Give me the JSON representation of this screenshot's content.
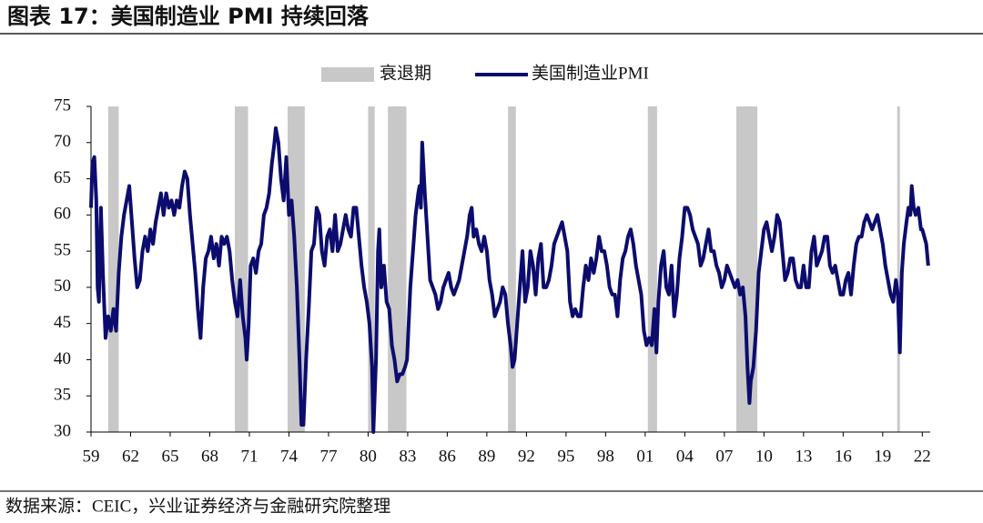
{
  "chart_data": {
    "type": "line",
    "title": "图表 17：美国制造业 PMI 持续回落",
    "source": "数据来源：CEIC，兴业证券经济与金融研究院整理",
    "recessions": {
      "name": "衰退期",
      "color": "#c8c8c8",
      "periods": [
        [
          1960.3,
          1961.1
        ],
        [
          1969.9,
          1970.9
        ],
        [
          1973.9,
          1975.2
        ],
        [
          1980.0,
          1980.5
        ],
        [
          1981.5,
          1982.9
        ],
        [
          1990.6,
          1991.2
        ],
        [
          2001.2,
          2001.9
        ],
        [
          2007.9,
          2009.5
        ],
        [
          2020.1,
          2020.3
        ]
      ]
    },
    "x": [
      1959.0,
      1959.1,
      1959.25,
      1959.4,
      1959.5,
      1959.6,
      1959.75,
      1959.9,
      1960.1,
      1960.3,
      1960.5,
      1960.7,
      1960.9,
      1961.1,
      1961.3,
      1961.5,
      1961.7,
      1961.9,
      1962.1,
      1962.3,
      1962.5,
      1962.7,
      1962.9,
      1963.1,
      1963.3,
      1963.5,
      1963.7,
      1963.9,
      1964.1,
      1964.3,
      1964.5,
      1964.7,
      1964.9,
      1965.1,
      1965.3,
      1965.5,
      1965.7,
      1965.9,
      1966.1,
      1966.3,
      1966.5,
      1966.7,
      1966.9,
      1967.1,
      1967.3,
      1967.5,
      1967.7,
      1967.9,
      1968.1,
      1968.3,
      1968.5,
      1968.7,
      1968.9,
      1969.1,
      1969.3,
      1969.5,
      1969.7,
      1969.9,
      1970.1,
      1970.3,
      1970.5,
      1970.7,
      1970.8,
      1970.95,
      1971.1,
      1971.3,
      1971.5,
      1971.7,
      1971.9,
      1972.1,
      1972.3,
      1972.5,
      1972.7,
      1972.9,
      1973.0,
      1973.2,
      1973.4,
      1973.6,
      1973.8,
      1974.0,
      1974.2,
      1974.4,
      1974.6,
      1974.8,
      1974.95,
      1975.1,
      1975.3,
      1975.5,
      1975.7,
      1975.9,
      1976.1,
      1976.3,
      1976.5,
      1976.7,
      1976.9,
      1977.1,
      1977.3,
      1977.5,
      1977.7,
      1977.9,
      1978.1,
      1978.3,
      1978.5,
      1978.7,
      1978.9,
      1979.1,
      1979.3,
      1979.5,
      1979.7,
      1979.9,
      1980.1,
      1980.3,
      1980.4,
      1980.6,
      1980.75,
      1980.85,
      1981.0,
      1981.2,
      1981.4,
      1981.6,
      1981.8,
      1982.0,
      1982.2,
      1982.4,
      1982.6,
      1982.8,
      1982.95,
      1983.2,
      1983.4,
      1983.6,
      1983.8,
      1983.9,
      1984.0,
      1984.1,
      1984.3,
      1984.5,
      1984.7,
      1984.9,
      1985.1,
      1985.3,
      1985.5,
      1985.7,
      1985.9,
      1986.1,
      1986.3,
      1986.5,
      1986.7,
      1986.9,
      1987.1,
      1987.3,
      1987.5,
      1987.7,
      1987.85,
      1988.0,
      1988.2,
      1988.4,
      1988.6,
      1988.8,
      1989.0,
      1989.2,
      1989.4,
      1989.6,
      1989.8,
      1990.0,
      1990.2,
      1990.4,
      1990.6,
      1990.8,
      1990.95,
      1991.1,
      1991.3,
      1991.5,
      1991.7,
      1991.9,
      1992.1,
      1992.3,
      1992.5,
      1992.7,
      1992.9,
      1993.1,
      1993.3,
      1993.5,
      1993.7,
      1993.9,
      1994.1,
      1994.3,
      1994.5,
      1994.7,
      1994.9,
      1995.1,
      1995.3,
      1995.5,
      1995.7,
      1995.9,
      1996.1,
      1996.3,
      1996.5,
      1996.7,
      1996.9,
      1997.1,
      1997.3,
      1997.5,
      1997.7,
      1997.9,
      1998.1,
      1998.3,
      1998.5,
      1998.7,
      1998.9,
      1999.1,
      1999.3,
      1999.5,
      1999.7,
      1999.9,
      2000.1,
      2000.3,
      2000.5,
      2000.7,
      2000.9,
      2001.1,
      2001.3,
      2001.5,
      2001.7,
      2001.85,
      2002.0,
      2002.2,
      2002.4,
      2002.6,
      2002.8,
      2003.0,
      2003.2,
      2003.4,
      2003.6,
      2003.8,
      2004.0,
      2004.2,
      2004.4,
      2004.6,
      2004.8,
      2005.0,
      2005.2,
      2005.4,
      2005.6,
      2005.8,
      2006.0,
      2006.2,
      2006.4,
      2006.6,
      2006.8,
      2007.0,
      2007.2,
      2007.4,
      2007.6,
      2007.8,
      2008.0,
      2008.2,
      2008.4,
      2008.6,
      2008.75,
      2008.9,
      2009.0,
      2009.2,
      2009.4,
      2009.6,
      2009.8,
      2010.0,
      2010.2,
      2010.4,
      2010.6,
      2010.8,
      2011.0,
      2011.2,
      2011.4,
      2011.6,
      2011.8,
      2012.0,
      2012.2,
      2012.4,
      2012.6,
      2012.8,
      2013.0,
      2013.2,
      2013.4,
      2013.6,
      2013.8,
      2014.0,
      2014.2,
      2014.4,
      2014.6,
      2014.8,
      2015.0,
      2015.2,
      2015.4,
      2015.6,
      2015.8,
      2016.0,
      2016.2,
      2016.4,
      2016.6,
      2016.8,
      2017.0,
      2017.2,
      2017.4,
      2017.6,
      2017.8,
      2018.0,
      2018.2,
      2018.4,
      2018.6,
      2018.8,
      2019.0,
      2019.2,
      2019.4,
      2019.6,
      2019.8,
      2020.0,
      2020.15,
      2020.3,
      2020.45,
      2020.6,
      2020.8,
      2020.95,
      2021.1,
      2021.2,
      2021.35,
      2021.5,
      2021.7,
      2021.9,
      2022.0,
      2022.15,
      2022.3,
      2022.45
    ],
    "series": [
      {
        "name": "美国制造业PMI",
        "color": "#0c0c6e",
        "values": [
          61,
          67,
          68,
          62,
          50,
          48,
          61,
          52,
          43,
          46,
          44,
          47,
          44,
          52,
          57,
          60,
          62,
          64,
          59,
          54,
          50,
          51,
          55,
          57,
          55,
          58,
          56,
          59,
          61,
          63,
          60,
          63,
          61,
          62,
          60,
          62,
          61,
          64,
          66,
          65,
          60,
          56,
          52,
          47,
          43,
          50,
          54,
          55,
          57,
          54,
          56,
          53,
          57,
          56,
          57,
          55,
          51,
          48,
          46,
          51,
          46,
          43,
          40,
          45,
          53,
          54,
          52,
          55,
          56,
          60,
          61,
          63,
          67,
          70,
          72,
          70,
          65,
          62,
          68,
          60,
          62,
          57,
          50,
          40,
          31,
          31,
          40,
          47,
          55,
          56,
          61,
          60,
          55,
          53,
          57,
          58,
          55,
          60,
          55,
          56,
          58,
          60,
          58,
          57,
          61,
          61,
          57,
          53,
          50,
          48,
          45,
          39,
          30,
          40,
          55,
          58,
          50,
          53,
          48,
          47,
          42,
          40,
          37,
          38,
          38,
          39,
          40,
          50,
          55,
          60,
          63,
          64,
          61,
          70,
          63,
          57,
          51,
          50,
          49,
          47,
          48,
          50,
          51,
          52,
          50,
          49,
          50,
          51,
          53,
          55,
          57,
          60,
          61,
          57,
          58,
          56,
          55,
          57,
          55,
          51,
          49,
          46,
          47,
          48,
          50,
          49,
          45,
          42,
          39,
          40,
          45,
          50,
          55,
          48,
          50,
          55,
          53,
          49,
          54,
          56,
          50,
          50,
          51,
          53,
          56,
          57,
          58,
          59,
          57,
          55,
          48,
          46,
          47,
          46,
          46,
          50,
          53,
          51,
          54,
          52,
          54,
          57,
          55,
          55,
          53,
          50,
          49,
          49,
          46,
          51,
          54,
          55,
          57,
          58,
          56,
          53,
          51,
          49,
          44,
          42,
          43,
          42,
          47,
          41,
          48,
          53,
          55,
          50,
          49,
          53,
          46,
          49,
          54,
          57,
          61,
          61,
          60,
          58,
          57,
          56,
          53,
          54,
          56,
          58,
          55,
          55,
          53,
          52,
          50,
          51,
          53,
          52,
          51,
          50,
          51,
          49,
          50,
          46,
          39,
          34,
          37,
          39,
          44,
          52,
          55,
          58,
          59,
          57,
          55,
          57,
          60,
          59,
          55,
          51,
          52,
          54,
          54,
          51,
          50,
          50,
          53,
          50,
          50,
          55,
          57,
          53,
          54,
          55,
          57,
          57,
          53,
          52,
          53,
          51,
          49,
          49,
          51,
          52,
          49,
          53,
          56,
          57,
          57,
          59,
          60,
          59,
          58,
          59,
          60,
          58,
          56,
          53,
          51,
          49,
          48,
          51,
          49,
          41,
          52,
          56,
          59,
          61,
          60,
          64,
          61,
          60,
          61,
          58,
          58,
          57,
          56,
          53
        ]
      }
    ],
    "xlim": [
      1959,
      2022.6
    ],
    "xticks": [
      {
        "value": 1959,
        "label": "59"
      },
      {
        "value": 1962,
        "label": "62"
      },
      {
        "value": 1965,
        "label": "65"
      },
      {
        "value": 1968,
        "label": "68"
      },
      {
        "value": 1971,
        "label": "71"
      },
      {
        "value": 1974,
        "label": "74"
      },
      {
        "value": 1977,
        "label": "77"
      },
      {
        "value": 1980,
        "label": "80"
      },
      {
        "value": 1983,
        "label": "83"
      },
      {
        "value": 1986,
        "label": "86"
      },
      {
        "value": 1989,
        "label": "89"
      },
      {
        "value": 1992,
        "label": "92"
      },
      {
        "value": 1995,
        "label": "95"
      },
      {
        "value": 1998,
        "label": "98"
      },
      {
        "value": 2001,
        "label": "01"
      },
      {
        "value": 2004,
        "label": "04"
      },
      {
        "value": 2007,
        "label": "07"
      },
      {
        "value": 2010,
        "label": "10"
      },
      {
        "value": 2013,
        "label": "13"
      },
      {
        "value": 2016,
        "label": "16"
      },
      {
        "value": 2019,
        "label": "19"
      },
      {
        "value": 2022,
        "label": "22"
      }
    ],
    "ylim": [
      30,
      75
    ],
    "yticks": [
      30,
      35,
      40,
      45,
      50,
      55,
      60,
      65,
      70,
      75
    ],
    "grid": false
  }
}
